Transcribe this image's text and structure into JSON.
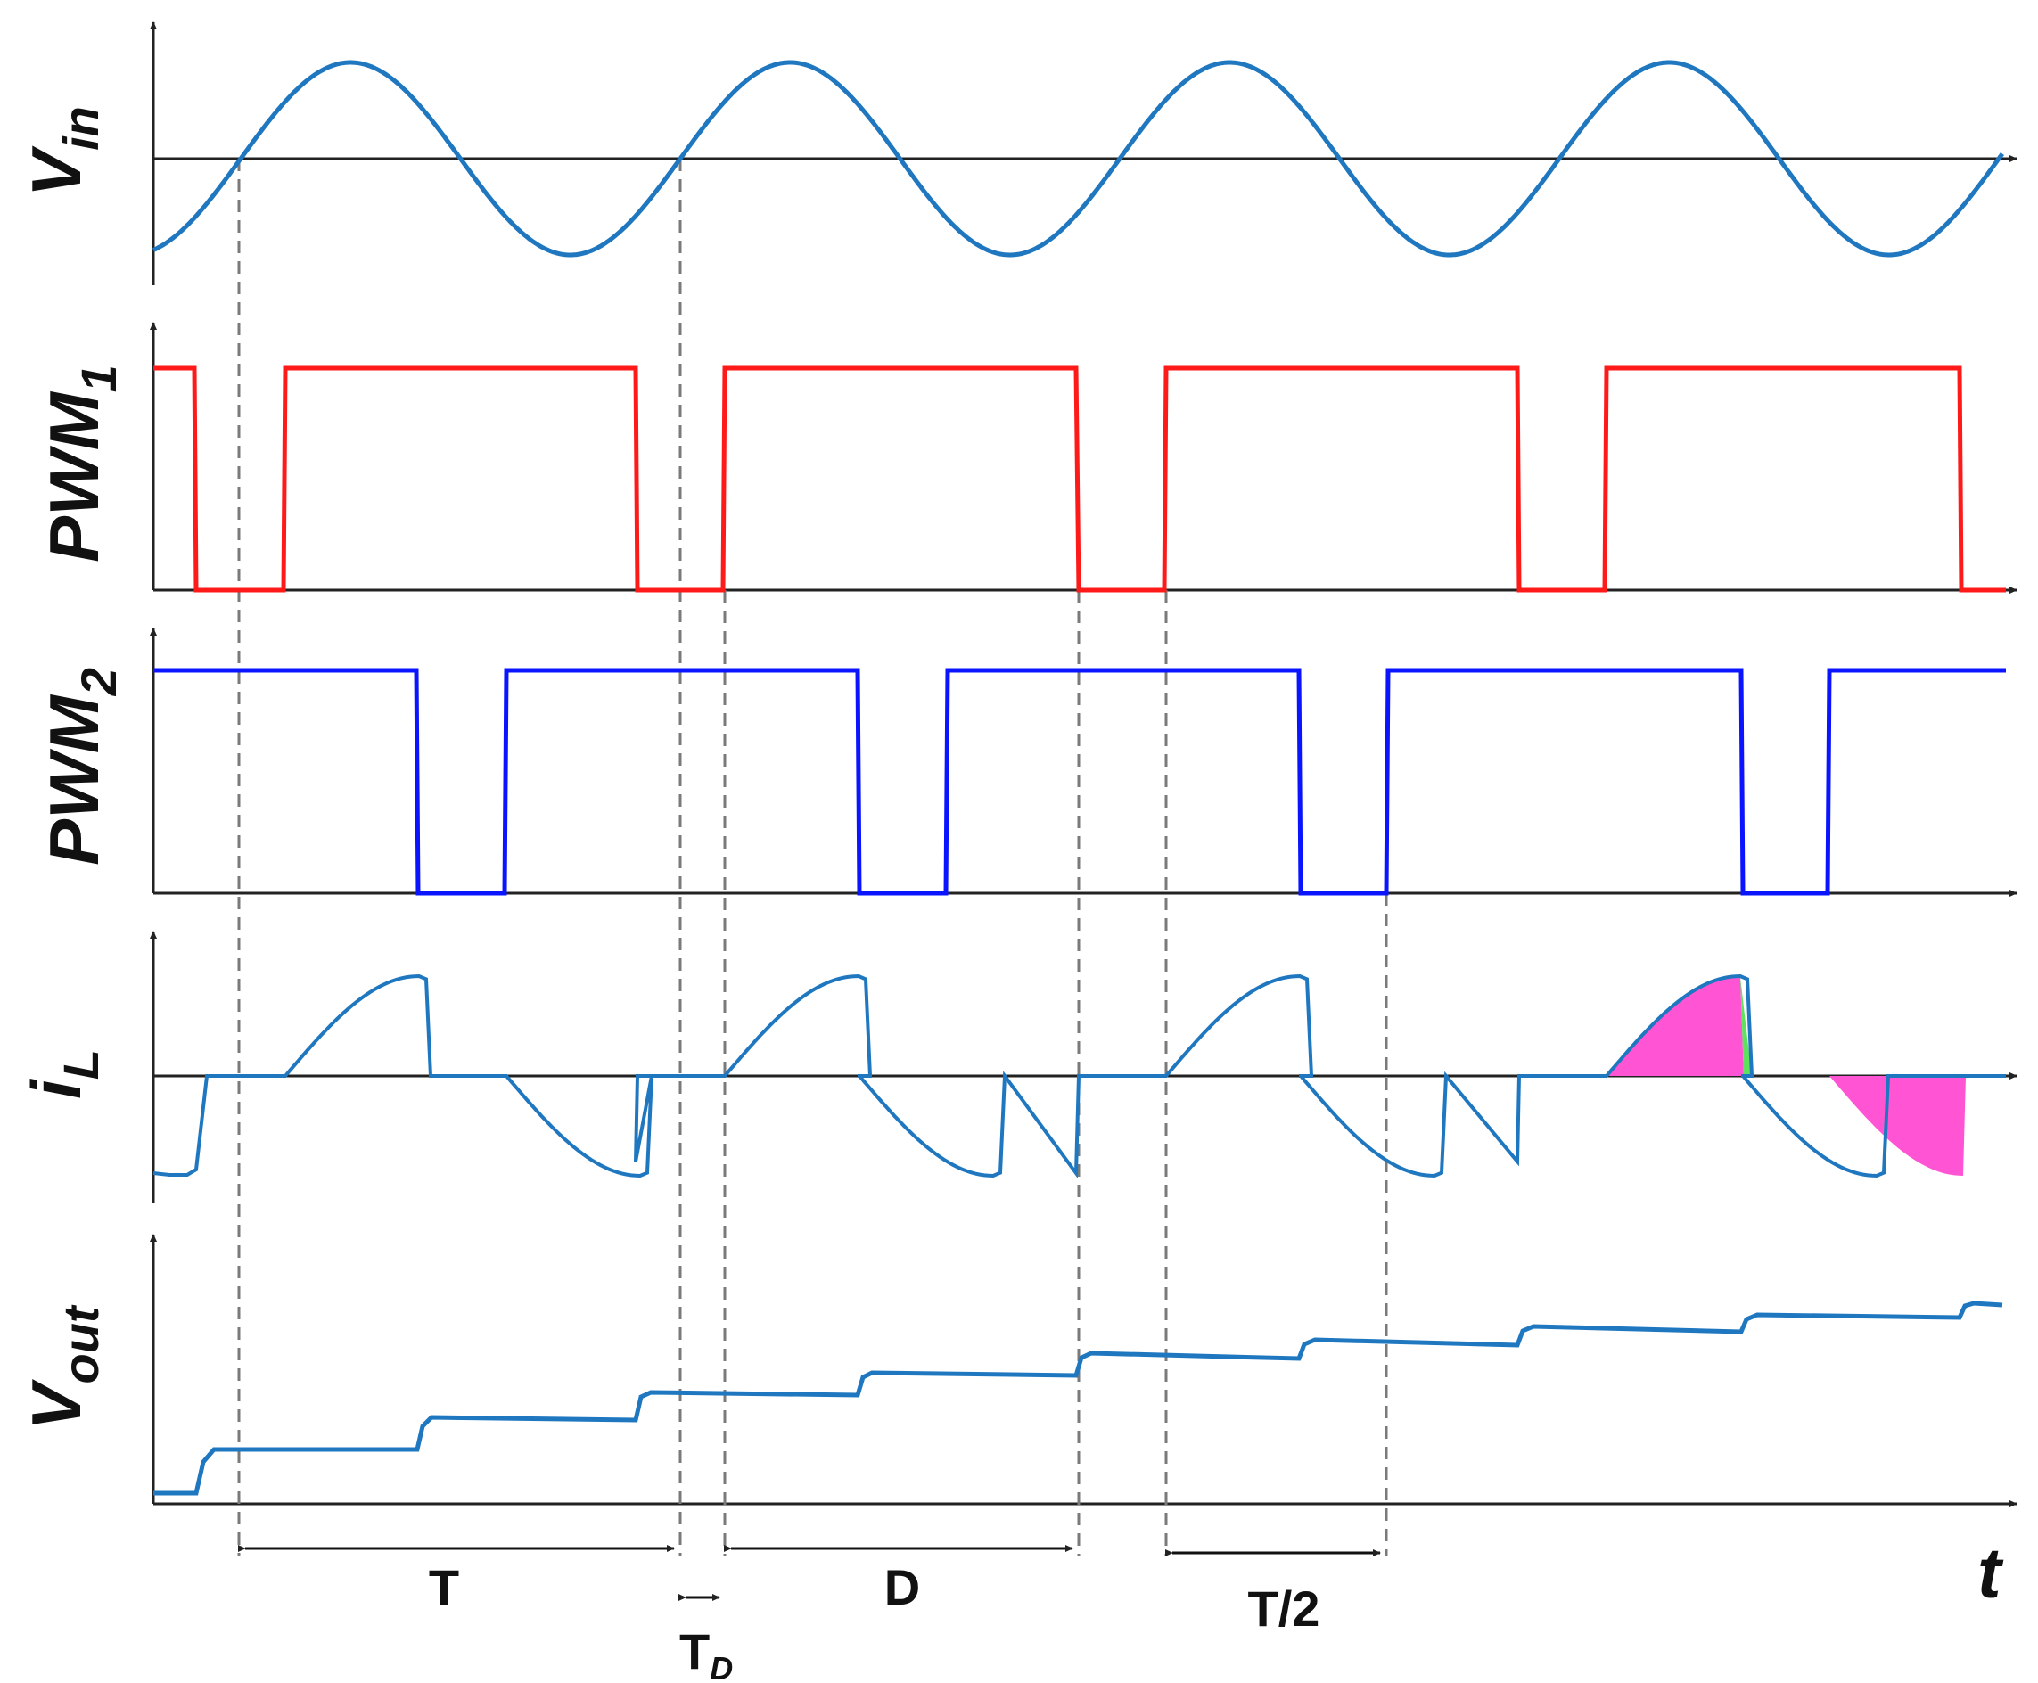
{
  "signals": {
    "vin": {
      "label_main": "V",
      "label_sub": "in"
    },
    "pwm1": {
      "label_main": "PWM",
      "label_sub": "1"
    },
    "pwm2": {
      "label_main": "PWM",
      "label_sub": "2"
    },
    "il": {
      "label_main": "i",
      "label_sub": "L"
    },
    "vout": {
      "label_main": "V",
      "label_sub": "out"
    }
  },
  "time_axis_label": "t",
  "annotations": {
    "period": "T",
    "duty": "D",
    "dead_time_main": "T",
    "dead_time_sub": "D",
    "half_period": "T/2"
  },
  "colors": {
    "vin": "#1f77c0",
    "pwm1": "#ff1a1a",
    "pwm2": "#0a14ff",
    "il": "#1f77c0",
    "vout": "#1f77c0",
    "fill_main": "#ff55d4",
    "fill_tail": "#5fe35f",
    "axis": "#222222",
    "guide": "#7a7a7a"
  }
}
